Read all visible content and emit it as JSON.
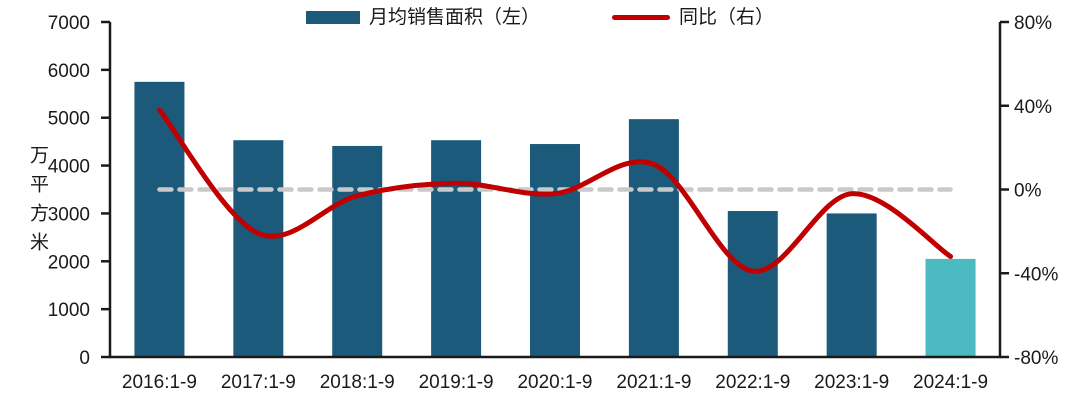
{
  "chart_data": {
    "type": "combo",
    "categories": [
      "2016:1-9",
      "2017:1-9",
      "2018:1-9",
      "2019:1-9",
      "2020:1-9",
      "2021:1-9",
      "2022:1-9",
      "2023:1-9",
      "2024:1-9"
    ],
    "series": [
      {
        "name": "月均销售面积（左）",
        "type": "bar",
        "axis": "left",
        "color": "#1b5a7a",
        "values": [
          5750,
          4530,
          4410,
          4530,
          4450,
          4970,
          3050,
          3000,
          2050
        ],
        "highlight": {
          "index": 8,
          "color": "#4bbac1"
        }
      },
      {
        "name": "同比（右）",
        "type": "line",
        "axis": "right",
        "color": "#c00000",
        "smooth": true,
        "values": [
          38,
          -21,
          -3,
          3,
          -2,
          12,
          -39,
          -2,
          -32
        ]
      }
    ],
    "left_axis": {
      "title": "万平方米",
      "min": 0,
      "max": 7000,
      "step": 1000,
      "tick_labels": [
        "0",
        "1000",
        "2000",
        "3000",
        "4000",
        "5000",
        "6000",
        "7000"
      ]
    },
    "right_axis": {
      "min": -80,
      "max": 80,
      "step": 40,
      "tick_labels": [
        "-80%",
        "-40%",
        "0%",
        "40%",
        "80%"
      ]
    },
    "zero_line": {
      "axis": "right",
      "value": 0,
      "style": "dashed",
      "color": "#c9c9c9"
    },
    "legend_position": "top",
    "grid": false
  }
}
